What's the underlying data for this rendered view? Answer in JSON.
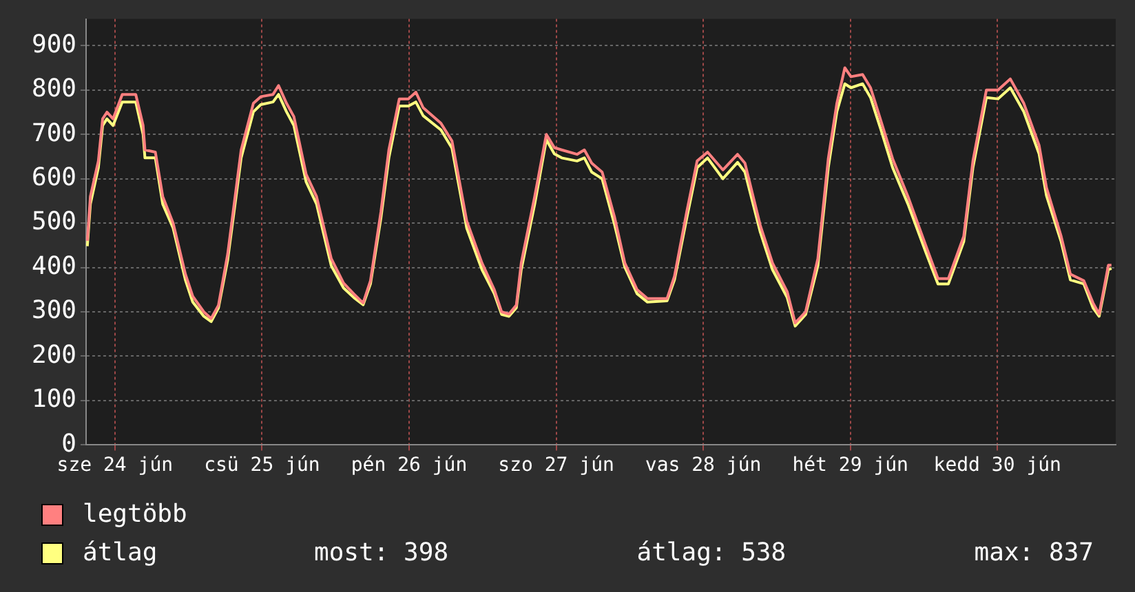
{
  "chart_data": {
    "type": "line",
    "x": [
      "--06-24T07:30",
      "--06-24T08:00",
      "--06-24T09:18",
      "--06-24T10:00",
      "--06-24T10:42",
      "--06-24T11:42",
      "--06-24T13:12",
      "--06-24T15:24",
      "--06-24T16:36",
      "--06-24T16:54",
      "--06-24T18:36",
      "--06-24T19:48",
      "--06-24T21:30",
      "--06-24T23:30",
      "--06-25T00:42",
      "--06-25T02:30",
      "--06-25T03:42",
      "--06-25T04:54",
      "--06-25T06:24",
      "--06-25T08:36",
      "--06-25T10:36",
      "--06-25T11:48",
      "--06-25T13:48",
      "--06-25T14:42",
      "--06-25T16:00",
      "--06-25T17:12",
      "--06-25T19:12",
      "--06-25T20:54",
      "--06-25T23:18",
      "--06-26T01:18",
      "--06-26T03:00",
      "--06-26T04:30",
      "--06-26T05:42",
      "--06-26T07:24",
      "--06-26T08:42",
      "--06-26T10:24",
      "--06-26T11:54",
      "--06-26T13:06",
      "--06-26T14:18",
      "--06-26T17:12",
      "--06-26T19:00",
      "--06-26T21:24",
      "--06-26T23:54",
      "--06-27T01:54",
      "--06-27T03:06",
      "--06-27T04:18",
      "--06-27T05:30",
      "--06-27T06:18",
      "--06-27T08:30",
      "--06-27T10:24",
      "--06-27T11:42",
      "--06-27T12:54",
      "--06-27T15:24",
      "--06-27T16:36",
      "--06-27T17:48",
      "--06-27T19:30",
      "--06-27T21:30",
      "--06-27T23:12",
      "--06-28T01:12",
      "--06-28T02:54",
      "--06-28T06:06",
      "--06-28T07:18",
      "--06-28T09:18",
      "--06-28T11:00",
      "--06-28T12:42",
      "--06-28T15:12",
      "--06-28T17:36",
      "--06-28T18:48",
      "--06-28T21:18",
      "--06-28T23:18",
      "--06-29T01:42",
      "--06-29T03:00",
      "--06-29T04:42",
      "--06-29T06:42",
      "--06-29T08:24",
      "--06-29T09:48",
      "--06-29T11:06",
      "--06-29T12:06",
      "--06-29T14:00",
      "--06-29T15:18",
      "--06-29T17:00",
      "--06-29T18:54",
      "--06-29T21:24",
      "--06-30T00:18",
      "--06-30T02:18",
      "--06-30T04:00",
      "--06-30T06:30",
      "--06-30T08:00",
      "--06-30T10:12",
      "--06-30T12:06",
      "--06-30T14:06",
      "--06-30T16:18",
      "--06-30T18:48",
      "--06-30T20:00",
      "--06-30T22:24",
      "--06-30T23:54",
      "--07-01T02:06",
      "--07-01T03:36",
      "--07-01T04:36",
      "--07-01T06:06",
      "--07-01T06:36"
    ],
    "series": [
      {
        "name": "legtöbb",
        "color": "#ff8080",
        "values": [
          460,
          560,
          640,
          735,
          750,
          735,
          790,
          790,
          720,
          665,
          660,
          560,
          500,
          385,
          335,
          300,
          285,
          315,
          430,
          665,
          770,
          785,
          790,
          810,
          770,
          740,
          610,
          560,
          420,
          365,
          340,
          320,
          370,
          525,
          665,
          780,
          780,
          795,
          760,
          725,
          685,
          505,
          410,
          350,
          300,
          295,
          315,
          410,
          560,
          700,
          670,
          665,
          655,
          665,
          635,
          615,
          515,
          410,
          350,
          330,
          330,
          380,
          525,
          640,
          660,
          620,
          655,
          635,
          495,
          410,
          345,
          275,
          300,
          420,
          645,
          770,
          850,
          830,
          835,
          805,
          730,
          645,
          560,
          450,
          375,
          375,
          470,
          640,
          800,
          800,
          825,
          770,
          675,
          580,
          470,
          385,
          370,
          320,
          295,
          405,
          405
        ]
      },
      {
        "name": "átlag",
        "color": "#ffff80",
        "values": [
          448,
          543,
          625,
          720,
          735,
          720,
          773,
          773,
          700,
          647,
          647,
          543,
          489,
          372,
          322,
          290,
          278,
          309,
          417,
          647,
          751,
          767,
          773,
          790,
          751,
          720,
          593,
          543,
          404,
          354,
          332,
          316,
          363,
          511,
          647,
          764,
          764,
          773,
          742,
          710,
          669,
          489,
          395,
          341,
          294,
          290,
          309,
          395,
          543,
          688,
          656,
          647,
          640,
          647,
          615,
          600,
          498,
          401,
          341,
          322,
          325,
          372,
          511,
          625,
          647,
          600,
          637,
          615,
          480,
          395,
          332,
          268,
          294,
          404,
          625,
          751,
          814,
          805,
          814,
          783,
          710,
          625,
          543,
          435,
          363,
          363,
          458,
          625,
          783,
          780,
          805,
          751,
          656,
          562,
          458,
          372,
          363,
          309,
          290,
          395,
          398
        ]
      }
    ],
    "xlim": [
      "--06-24T07:18",
      "--07-01T07:18"
    ],
    "xticks": [
      {
        "value": "--06-24T12:00",
        "label": "sze 24 jún"
      },
      {
        "value": "--06-25T12:00",
        "label": "csü 25 jún"
      },
      {
        "value": "--06-26T12:00",
        "label": "pén 26 jún"
      },
      {
        "value": "--06-27T12:00",
        "label": "szo 27 jún"
      },
      {
        "value": "--06-28T12:00",
        "label": "vas 28 jún"
      },
      {
        "value": "--06-29T12:00",
        "label": "hét 29 jún"
      },
      {
        "value": "--06-30T12:00",
        "label": "kedd 30 jún"
      }
    ],
    "ylim": [
      0,
      960
    ],
    "yticks": [
      0,
      100,
      200,
      300,
      400,
      500,
      600,
      700,
      800,
      900
    ],
    "grid": true,
    "legend": "bottom",
    "annotations": [
      "most: 398",
      "átlag: 538",
      "max: 837"
    ]
  }
}
